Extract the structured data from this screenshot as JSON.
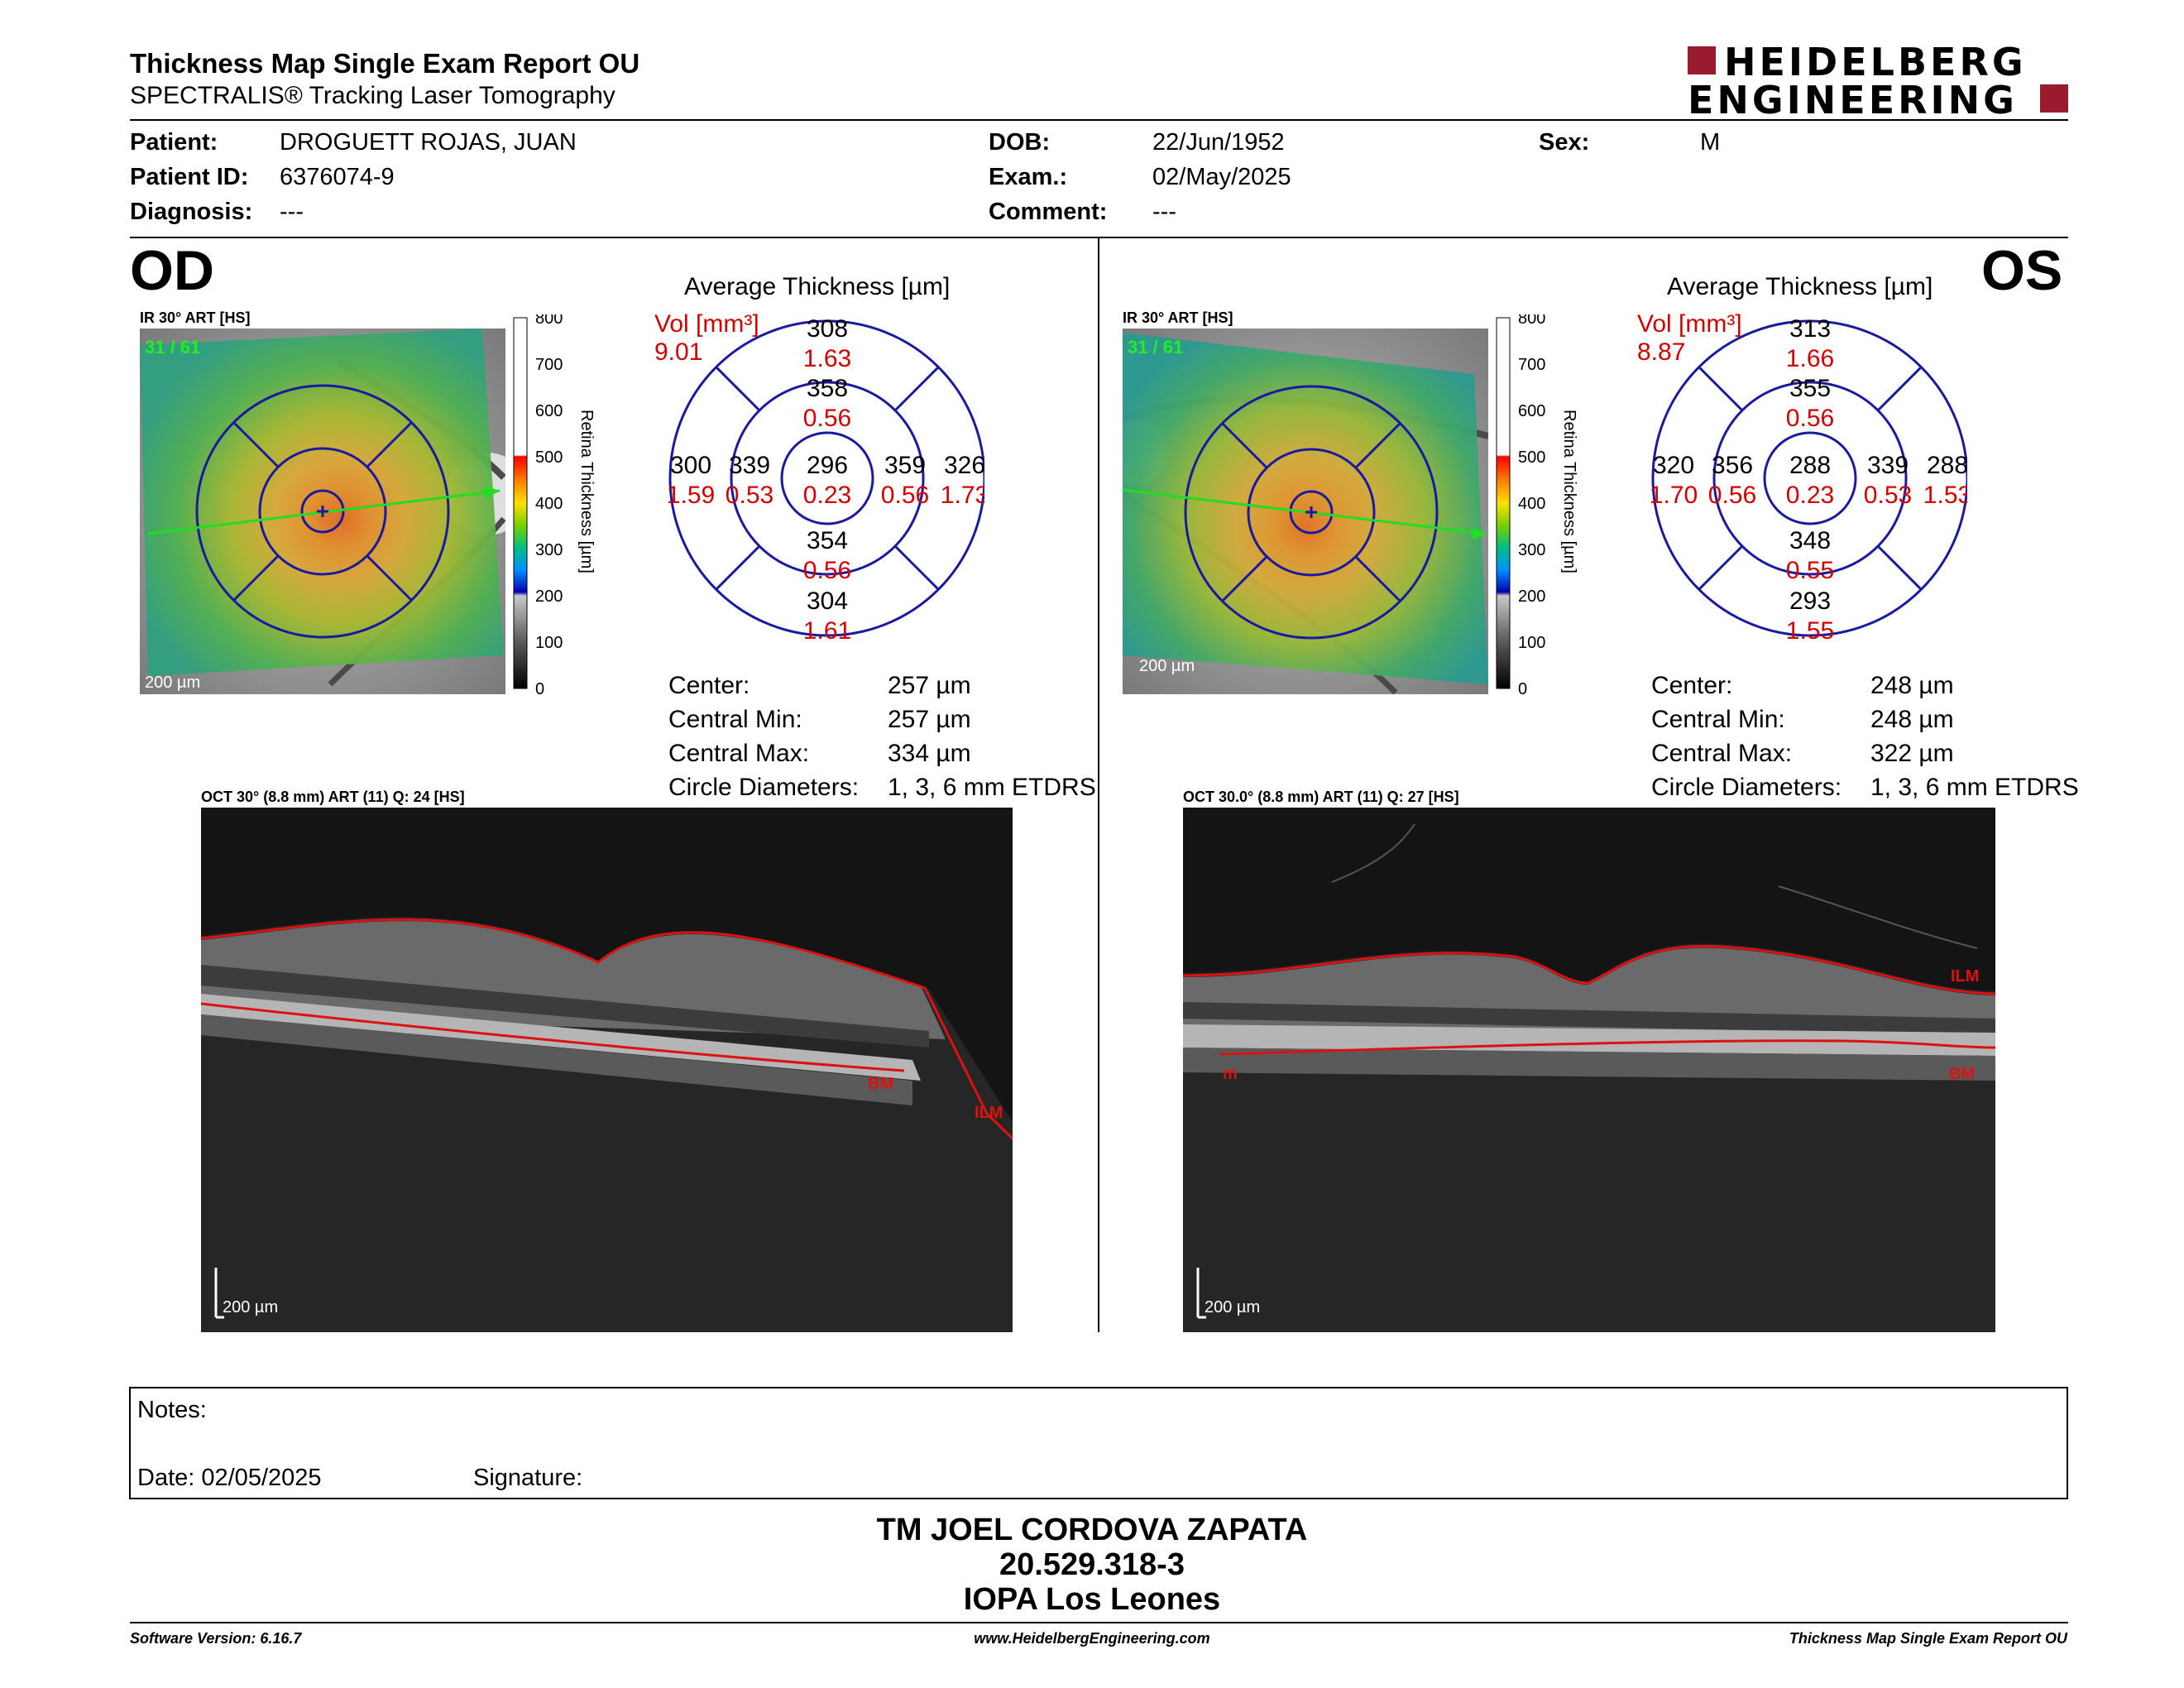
{
  "header": {
    "title": "Thickness Map Single Exam Report OU",
    "subtitle": "SPECTRALIS® Tracking Laser Tomography",
    "logo_line1": "HEIDELBERG",
    "logo_line2": "ENGINEERING"
  },
  "patient": {
    "patient_label": "Patient:",
    "patient_value": "DROGUETT ROJAS, JUAN",
    "id_label": "Patient ID:",
    "id_value": "6376074-9",
    "diagnosis_label": "Diagnosis:",
    "diagnosis_value": "---",
    "dob_label": "DOB:",
    "dob_value": "22/Jun/1952",
    "exam_label": "Exam.:",
    "exam_value": "02/May/2025",
    "comment_label": "Comment:",
    "comment_value": "---",
    "sex_label": "Sex:",
    "sex_value": "M"
  },
  "scale": {
    "ticks": [
      "800",
      "700",
      "600",
      "500",
      "400",
      "300",
      "200",
      "100",
      "0"
    ],
    "label": "Retina Thickness [µm]"
  },
  "od": {
    "eye": "OD",
    "ir_caption": "IR 30° ART [HS]",
    "frame": "31 / 61",
    "scale_bar": "200 µm",
    "avg_title": "Average Thickness [µm]",
    "vol_label": "Vol [mm³]",
    "vol_value": "9.01",
    "grid": {
      "center_t": "296",
      "center_v": "0.23",
      "inner_sup_t": "358",
      "inner_sup_v": "0.56",
      "inner_inf_t": "354",
      "inner_inf_v": "0.56",
      "inner_left_t": "339",
      "inner_left_v": "0.53",
      "inner_right_t": "359",
      "inner_right_v": "0.56",
      "outer_sup_t": "308",
      "outer_sup_v": "1.63",
      "outer_inf_t": "304",
      "outer_inf_v": "1.61",
      "outer_left_t": "300",
      "outer_left_v": "1.59",
      "outer_right_t": "326",
      "outer_right_v": "1.73"
    },
    "stats": [
      {
        "label": "Center:",
        "value": "257 µm"
      },
      {
        "label": "Central Min:",
        "value": "257 µm"
      },
      {
        "label": "Central Max:",
        "value": "334 µm"
      },
      {
        "label": "Circle Diameters:",
        "value": "1, 3, 6 mm ETDRS"
      }
    ],
    "oct_caption": "OCT 30° (8.8 mm) ART (11) Q: 24 [HS]",
    "oct_scale": "200 µm",
    "oct_labels": {
      "bm": "BM",
      "ilm": "ILM"
    }
  },
  "os": {
    "eye": "OS",
    "ir_caption": "IR 30° ART [HS]",
    "frame": "31 / 61",
    "scale_bar": "200 µm",
    "avg_title": "Average Thickness [µm]",
    "vol_label": "Vol [mm³]",
    "vol_value": "8.87",
    "grid": {
      "center_t": "288",
      "center_v": "0.23",
      "inner_sup_t": "355",
      "inner_sup_v": "0.56",
      "inner_inf_t": "348",
      "inner_inf_v": "0.55",
      "inner_left_t": "356",
      "inner_left_v": "0.56",
      "inner_right_t": "339",
      "inner_right_v": "0.53",
      "outer_sup_t": "313",
      "outer_sup_v": "1.66",
      "outer_inf_t": "293",
      "outer_inf_v": "1.55",
      "outer_left_t": "320",
      "outer_left_v": "1.70",
      "outer_right_t": "288",
      "outer_right_v": "1.53"
    },
    "stats": [
      {
        "label": "Center:",
        "value": "248 µm"
      },
      {
        "label": "Central Min:",
        "value": "248 µm"
      },
      {
        "label": "Central Max:",
        "value": "322 µm"
      },
      {
        "label": "Circle Diameters:",
        "value": "1, 3, 6 mm ETDRS"
      }
    ],
    "oct_caption": "OCT 30.0° (8.8 mm) ART (11) Q: 27 [HS]",
    "oct_scale": "200 µm",
    "oct_labels": {
      "m": "m",
      "ilm": "ILM",
      "bm": "BM"
    }
  },
  "notes": {
    "notes_label": "Notes:",
    "date_label": "Date: 02/05/2025",
    "signature_label": "Signature:"
  },
  "signer": {
    "name": "TM JOEL CORDOVA ZAPATA",
    "id": "20.529.318-3",
    "place": "IOPA Los Leones"
  },
  "footer": {
    "software": "Software Version: 6.16.7",
    "website": "www.HeidelbergEngineering.com",
    "report": "Thickness Map Single Exam Report OU"
  },
  "colors": {
    "ring": "#1a1a9e",
    "volume": "#d40000",
    "logo": "#9b1b2e"
  }
}
